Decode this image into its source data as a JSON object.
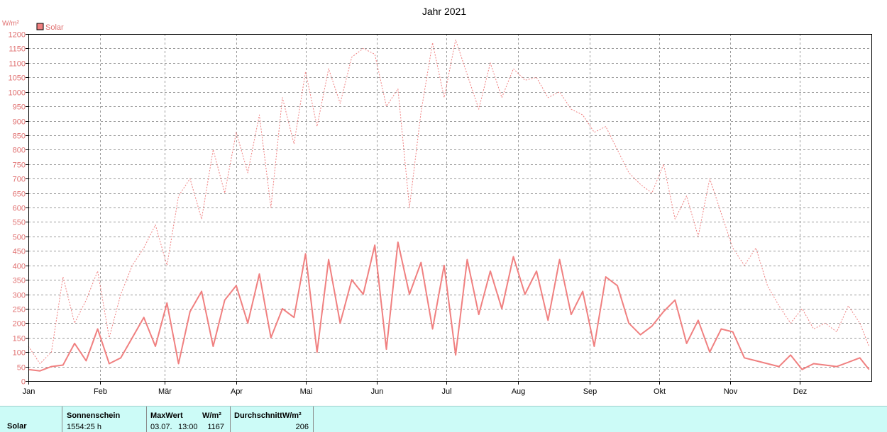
{
  "chart_data": {
    "type": "line",
    "title": "Jahr 2021",
    "ylabel": "W/m²",
    "ylim": [
      0,
      1200
    ],
    "yticks": [
      0,
      50,
      100,
      150,
      200,
      250,
      300,
      350,
      400,
      450,
      500,
      550,
      600,
      650,
      700,
      750,
      800,
      850,
      900,
      950,
      1000,
      1050,
      1100,
      1150,
      1200
    ],
    "x_start": "2021-01-01",
    "x_end": "2021-12-31",
    "month_ticks": [
      {
        "label": "Jan",
        "date": "2021-01-01"
      },
      {
        "label": "Feb",
        "date": "2021-02-01"
      },
      {
        "label": "Mär",
        "date": "2021-03-01"
      },
      {
        "label": "Apr",
        "date": "2021-04-01"
      },
      {
        "label": "Mai",
        "date": "2021-05-01"
      },
      {
        "label": "Jun",
        "date": "2021-06-01"
      },
      {
        "label": "Jul",
        "date": "2021-07-01"
      },
      {
        "label": "Aug",
        "date": "2021-08-01"
      },
      {
        "label": "Sep",
        "date": "2021-09-01"
      },
      {
        "label": "Okt",
        "date": "2021-10-01"
      },
      {
        "label": "Nov",
        "date": "2021-11-01"
      },
      {
        "label": "Dez",
        "date": "2021-12-01"
      }
    ],
    "grid": true,
    "legend": {
      "position": "top-left",
      "entries": [
        "Solar"
      ]
    },
    "color": "#f08080",
    "series": [
      {
        "name": "Solar",
        "style": "solid",
        "x": [
          "2021-01-01",
          "2021-01-06",
          "2021-01-11",
          "2021-01-16",
          "2021-01-21",
          "2021-01-26",
          "2021-01-31",
          "2021-02-05",
          "2021-02-10",
          "2021-02-15",
          "2021-02-20",
          "2021-02-25",
          "2021-03-02",
          "2021-03-07",
          "2021-03-12",
          "2021-03-17",
          "2021-03-22",
          "2021-03-27",
          "2021-04-01",
          "2021-04-06",
          "2021-04-11",
          "2021-04-16",
          "2021-04-21",
          "2021-04-26",
          "2021-05-01",
          "2021-05-06",
          "2021-05-11",
          "2021-05-16",
          "2021-05-21",
          "2021-05-26",
          "2021-05-31",
          "2021-06-05",
          "2021-06-10",
          "2021-06-15",
          "2021-06-20",
          "2021-06-25",
          "2021-06-30",
          "2021-07-05",
          "2021-07-10",
          "2021-07-15",
          "2021-07-20",
          "2021-07-25",
          "2021-07-30",
          "2021-08-04",
          "2021-08-09",
          "2021-08-14",
          "2021-08-19",
          "2021-08-24",
          "2021-08-29",
          "2021-09-03",
          "2021-09-08",
          "2021-09-13",
          "2021-09-18",
          "2021-09-23",
          "2021-09-28",
          "2021-10-03",
          "2021-10-08",
          "2021-10-13",
          "2021-10-18",
          "2021-10-23",
          "2021-10-28",
          "2021-11-02",
          "2021-11-07",
          "2021-11-12",
          "2021-11-17",
          "2021-11-22",
          "2021-11-27",
          "2021-12-02",
          "2021-12-07",
          "2021-12-12",
          "2021-12-17",
          "2021-12-22",
          "2021-12-27",
          "2021-12-31"
        ],
        "values": [
          40,
          35,
          50,
          55,
          130,
          70,
          180,
          60,
          80,
          150,
          220,
          120,
          270,
          60,
          240,
          310,
          120,
          280,
          330,
          200,
          370,
          150,
          250,
          220,
          440,
          100,
          420,
          200,
          350,
          300,
          470,
          110,
          480,
          300,
          410,
          180,
          400,
          90,
          420,
          230,
          380,
          250,
          430,
          300,
          380,
          210,
          420,
          230,
          310,
          120,
          360,
          330,
          200,
          160,
          190,
          240,
          280,
          130,
          210,
          100,
          180,
          170,
          80,
          70,
          60,
          50,
          90,
          40,
          60,
          55,
          50,
          65,
          80,
          40
        ]
      },
      {
        "name": "",
        "style": "dashed",
        "x": [
          "2021-01-01",
          "2021-01-06",
          "2021-01-11",
          "2021-01-16",
          "2021-01-21",
          "2021-01-26",
          "2021-01-31",
          "2021-02-05",
          "2021-02-10",
          "2021-02-15",
          "2021-02-20",
          "2021-02-25",
          "2021-03-02",
          "2021-03-07",
          "2021-03-12",
          "2021-03-17",
          "2021-03-22",
          "2021-03-27",
          "2021-04-01",
          "2021-04-06",
          "2021-04-11",
          "2021-04-16",
          "2021-04-21",
          "2021-04-26",
          "2021-05-01",
          "2021-05-06",
          "2021-05-11",
          "2021-05-16",
          "2021-05-21",
          "2021-05-26",
          "2021-05-31",
          "2021-06-05",
          "2021-06-10",
          "2021-06-15",
          "2021-06-20",
          "2021-06-25",
          "2021-06-30",
          "2021-07-05",
          "2021-07-10",
          "2021-07-15",
          "2021-07-20",
          "2021-07-25",
          "2021-07-30",
          "2021-08-04",
          "2021-08-09",
          "2021-08-14",
          "2021-08-19",
          "2021-08-24",
          "2021-08-29",
          "2021-09-03",
          "2021-09-08",
          "2021-09-13",
          "2021-09-18",
          "2021-09-23",
          "2021-09-28",
          "2021-10-03",
          "2021-10-08",
          "2021-10-13",
          "2021-10-18",
          "2021-10-23",
          "2021-10-28",
          "2021-11-02",
          "2021-11-07",
          "2021-11-12",
          "2021-11-17",
          "2021-11-22",
          "2021-11-27",
          "2021-12-02",
          "2021-12-07",
          "2021-12-12",
          "2021-12-17",
          "2021-12-22",
          "2021-12-27",
          "2021-12-31"
        ],
        "values": [
          120,
          60,
          100,
          360,
          200,
          280,
          380,
          150,
          300,
          400,
          460,
          540,
          400,
          640,
          700,
          560,
          800,
          650,
          860,
          720,
          920,
          600,
          980,
          820,
          1070,
          880,
          1080,
          960,
          1120,
          1150,
          1130,
          950,
          1010,
          600,
          930,
          1170,
          980,
          1180,
          1060,
          940,
          1100,
          980,
          1080,
          1040,
          1050,
          980,
          1000,
          940,
          920,
          860,
          880,
          800,
          720,
          680,
          650,
          750,
          560,
          640,
          500,
          700,
          580,
          460,
          400,
          460,
          330,
          260,
          200,
          250,
          180,
          200,
          170,
          260,
          200,
          120
        ]
      }
    ]
  },
  "summary": {
    "row_label": "Solar",
    "sonnenschein_header": "Sonnenschein",
    "sonnenschein_value": "1554:25 h",
    "maxwert_header": "MaxWert",
    "maxwert_unit_header": "W/m²",
    "maxwert_date": "03.07.",
    "maxwert_time": "13:00",
    "maxwert_value": "1167",
    "durchschnitt_header": "DurchschnittW/m²",
    "durchschnitt_value": "206"
  }
}
